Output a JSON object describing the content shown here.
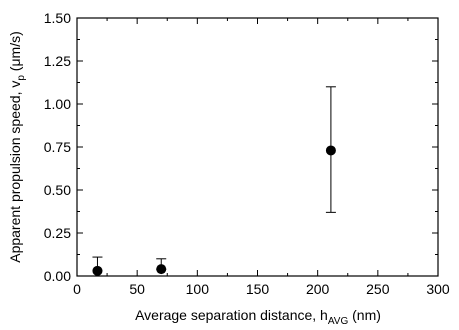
{
  "chart_data": {
    "type": "scatter",
    "xlabel": "Average separation distance, h",
    "xlabel_sub": "AVG",
    "xlabel_unit": " (nm)",
    "ylabel": "Apparent propulsion speed, v",
    "ylabel_sub": "p",
    "ylabel_unit": " (μm/s)",
    "xlim": [
      0,
      300
    ],
    "ylim": [
      0,
      1.5
    ],
    "xticks": [
      "0",
      "50",
      "100",
      "150",
      "200",
      "250",
      "300"
    ],
    "yticks": [
      "0.00",
      "0.25",
      "0.50",
      "0.75",
      "1.00",
      "1.25",
      "1.50"
    ],
    "grid": false,
    "series": [
      {
        "points": [
          {
            "x": 17,
            "y": 0.03,
            "err_low": 0.03,
            "err_high": 0.11
          },
          {
            "x": 70,
            "y": 0.04,
            "err_low": 0.04,
            "err_high": 0.1
          },
          {
            "x": 211,
            "y": 0.73,
            "err_low": 0.37,
            "err_high": 1.1
          }
        ]
      }
    ],
    "marker_color": "#000000"
  }
}
